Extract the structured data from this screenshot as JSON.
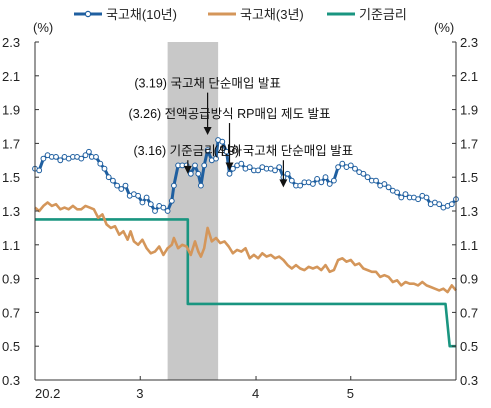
{
  "chart_data": {
    "type": "line",
    "y_unit_left": "(%)",
    "y_unit_right": "(%)",
    "ylim": [
      0.3,
      2.3
    ],
    "yticks": [
      "2.3",
      "2.1",
      "1.9",
      "1.7",
      "1.5",
      "1.3",
      "1.1",
      "0.9",
      "0.7",
      "0.5",
      "0.3"
    ],
    "xlim": [
      0,
      100
    ],
    "xticks": [
      {
        "label": "20.2",
        "x": 0
      },
      {
        "label": "3",
        "x": 25
      },
      {
        "label": "4",
        "x": 52.5
      },
      {
        "label": "5",
        "x": 75
      }
    ],
    "shaded_band": {
      "x0": 31.5,
      "x1": 43.5
    },
    "legend_position": "top",
    "series": [
      {
        "name": "국고채(10년)",
        "color": "#1f5fa0",
        "markers": true,
        "points": [
          [
            0,
            1.55
          ],
          [
            1,
            1.54
          ],
          [
            2,
            1.61
          ],
          [
            3,
            1.63
          ],
          [
            4,
            1.62
          ],
          [
            5,
            1.62
          ],
          [
            6,
            1.6
          ],
          [
            7,
            1.62
          ],
          [
            8,
            1.61
          ],
          [
            9,
            1.62
          ],
          [
            10,
            1.62
          ],
          [
            11,
            1.61
          ],
          [
            12,
            1.63
          ],
          [
            12.8,
            1.65
          ],
          [
            13.5,
            1.62
          ],
          [
            14.5,
            1.62
          ],
          [
            15.5,
            1.58
          ],
          [
            16.5,
            1.55
          ],
          [
            17.5,
            1.5
          ],
          [
            18.5,
            1.48
          ],
          [
            19.5,
            1.45
          ],
          [
            20.5,
            1.43
          ],
          [
            21.5,
            1.45
          ],
          [
            22.5,
            1.39
          ],
          [
            23.5,
            1.4
          ],
          [
            24.5,
            1.39
          ],
          [
            25.5,
            1.35
          ],
          [
            26.5,
            1.38
          ],
          [
            27.5,
            1.34
          ],
          [
            28.5,
            1.3
          ],
          [
            29.5,
            1.33
          ],
          [
            30.5,
            1.32
          ],
          [
            31.5,
            1.3
          ],
          [
            32.5,
            1.36
          ],
          [
            33,
            1.45
          ],
          [
            34,
            1.57
          ],
          [
            35,
            1.57
          ],
          [
            36,
            1.57
          ],
          [
            37,
            1.52
          ],
          [
            38,
            1.57
          ],
          [
            38.8,
            1.52
          ],
          [
            39.4,
            1.45
          ],
          [
            40.2,
            1.57
          ],
          [
            41,
            1.66
          ],
          [
            42,
            1.6
          ],
          [
            43,
            1.61
          ],
          [
            43.5,
            1.72
          ],
          [
            44.5,
            1.71
          ],
          [
            45.5,
            1.65
          ],
          [
            46.2,
            1.52
          ],
          [
            47,
            1.55
          ],
          [
            48,
            1.57
          ],
          [
            49,
            1.58
          ],
          [
            50,
            1.55
          ],
          [
            51,
            1.56
          ],
          [
            52,
            1.54
          ],
          [
            53,
            1.54
          ],
          [
            54,
            1.56
          ],
          [
            55,
            1.55
          ],
          [
            56,
            1.55
          ],
          [
            57,
            1.54
          ],
          [
            58,
            1.56
          ],
          [
            59,
            1.5
          ],
          [
            60,
            1.52
          ],
          [
            61,
            1.48
          ],
          [
            62,
            1.45
          ],
          [
            63,
            1.45
          ],
          [
            64,
            1.47
          ],
          [
            65,
            1.47
          ],
          [
            66,
            1.46
          ],
          [
            67,
            1.49
          ],
          [
            68,
            1.47
          ],
          [
            69,
            1.5
          ],
          [
            70,
            1.46
          ],
          [
            71,
            1.48
          ],
          [
            72,
            1.56
          ],
          [
            73,
            1.58
          ],
          [
            74,
            1.56
          ],
          [
            75,
            1.57
          ],
          [
            76,
            1.55
          ],
          [
            77,
            1.53
          ],
          [
            78,
            1.52
          ],
          [
            79,
            1.5
          ],
          [
            80,
            1.48
          ],
          [
            81,
            1.48
          ],
          [
            82,
            1.45
          ],
          [
            83,
            1.46
          ],
          [
            84,
            1.44
          ],
          [
            85,
            1.42
          ],
          [
            86,
            1.41
          ],
          [
            87,
            1.38
          ],
          [
            88,
            1.4
          ],
          [
            89,
            1.38
          ],
          [
            90,
            1.38
          ],
          [
            91,
            1.37
          ],
          [
            92,
            1.39
          ],
          [
            93,
            1.38
          ],
          [
            94,
            1.34
          ],
          [
            95,
            1.35
          ],
          [
            96,
            1.34
          ],
          [
            97,
            1.32
          ],
          [
            98,
            1.33
          ],
          [
            99,
            1.34
          ],
          [
            100,
            1.37
          ]
        ]
      },
      {
        "name": "국고채(3년)",
        "color": "#d4965a",
        "markers": false,
        "points": [
          [
            0,
            1.32
          ],
          [
            1,
            1.3
          ],
          [
            2,
            1.33
          ],
          [
            3,
            1.35
          ],
          [
            4,
            1.33
          ],
          [
            5,
            1.34
          ],
          [
            6,
            1.31
          ],
          [
            7,
            1.32
          ],
          [
            8,
            1.31
          ],
          [
            9,
            1.33
          ],
          [
            10,
            1.31
          ],
          [
            11,
            1.31
          ],
          [
            12,
            1.33
          ],
          [
            13,
            1.32
          ],
          [
            14,
            1.31
          ],
          [
            15,
            1.26
          ],
          [
            16,
            1.28
          ],
          [
            17,
            1.22
          ],
          [
            18,
            1.2
          ],
          [
            19,
            1.21
          ],
          [
            20,
            1.16
          ],
          [
            21,
            1.18
          ],
          [
            22,
            1.13
          ],
          [
            22.7,
            1.18
          ],
          [
            23.5,
            1.12
          ],
          [
            24.5,
            1.1
          ],
          [
            25.5,
            1.13
          ],
          [
            26.5,
            1.08
          ],
          [
            27.5,
            1.05
          ],
          [
            28.5,
            1.06
          ],
          [
            29.5,
            1.09
          ],
          [
            30.5,
            1.04
          ],
          [
            31.5,
            1.08
          ],
          [
            32.5,
            1.1
          ],
          [
            33,
            1.14
          ],
          [
            34,
            1.08
          ],
          [
            35,
            1.1
          ],
          [
            36,
            1.09
          ],
          [
            37,
            1.04
          ],
          [
            38,
            1.12
          ],
          [
            38.8,
            1.06
          ],
          [
            39.4,
            1.03
          ],
          [
            40.2,
            1.08
          ],
          [
            41,
            1.2
          ],
          [
            42,
            1.12
          ],
          [
            43,
            1.14
          ],
          [
            44,
            1.11
          ],
          [
            45,
            1.12
          ],
          [
            46,
            1.09
          ],
          [
            47,
            1.05
          ],
          [
            48,
            1.07
          ],
          [
            49,
            1.06
          ],
          [
            50,
            1.08
          ],
          [
            51,
            1.02
          ],
          [
            52,
            1.04
          ],
          [
            53,
            1.02
          ],
          [
            54,
            1.05
          ],
          [
            55,
            1.03
          ],
          [
            56,
            1.04
          ],
          [
            57,
            1.02
          ],
          [
            58,
            1.03
          ],
          [
            59,
            1.01
          ],
          [
            60,
            0.98
          ],
          [
            61,
            0.96
          ],
          [
            62,
            0.98
          ],
          [
            63,
            0.96
          ],
          [
            64,
            0.95
          ],
          [
            65,
            0.97
          ],
          [
            66,
            0.96
          ],
          [
            67,
            0.97
          ],
          [
            68,
            0.95
          ],
          [
            69,
            0.98
          ],
          [
            70,
            0.94
          ],
          [
            71,
            0.95
          ],
          [
            72,
            1.01
          ],
          [
            73,
            1.02
          ],
          [
            74,
            1.0
          ],
          [
            75,
            1.01
          ],
          [
            76,
            0.98
          ],
          [
            77,
            0.99
          ],
          [
            78,
            0.96
          ],
          [
            79,
            0.95
          ],
          [
            80,
            0.94
          ],
          [
            81,
            0.94
          ],
          [
            82,
            0.91
          ],
          [
            83,
            0.92
          ],
          [
            84,
            0.91
          ],
          [
            85,
            0.88
          ],
          [
            86,
            0.89
          ],
          [
            87,
            0.86
          ],
          [
            88,
            0.88
          ],
          [
            89,
            0.87
          ],
          [
            90,
            0.87
          ],
          [
            91,
            0.86
          ],
          [
            92,
            0.88
          ],
          [
            93,
            0.86
          ],
          [
            94,
            0.85
          ],
          [
            95,
            0.84
          ],
          [
            96,
            0.83
          ],
          [
            97,
            0.84
          ],
          [
            98,
            0.82
          ],
          [
            99,
            0.86
          ],
          [
            100,
            0.83
          ]
        ]
      },
      {
        "name": "기준금리",
        "color": "#1a9580",
        "markers": false,
        "points": [
          [
            0,
            1.25
          ],
          [
            36.3,
            1.25
          ],
          [
            36.3,
            0.75
          ],
          [
            97.5,
            0.75
          ],
          [
            98.5,
            0.5
          ],
          [
            100,
            0.5
          ]
        ]
      }
    ],
    "annotations": [
      {
        "text": "(3.16) 기준금리 인하",
        "x": 36.3,
        "y_text": 1.63,
        "y_tip": 1.52
      },
      {
        "text": "(3.19) 국고채 단순매입 발표",
        "x": 41,
        "y_text": 2.03,
        "y_tip": 1.75
      },
      {
        "text": "(3.26) 전액공급방식 RP매입 제도 발표",
        "x": 46.2,
        "y_text": 1.85,
        "y_tip": 1.54
      },
      {
        "text": "(4.9) 국고채 단순매입 발표",
        "x": 59,
        "y_text": 1.63,
        "y_tip": 1.44
      }
    ]
  }
}
